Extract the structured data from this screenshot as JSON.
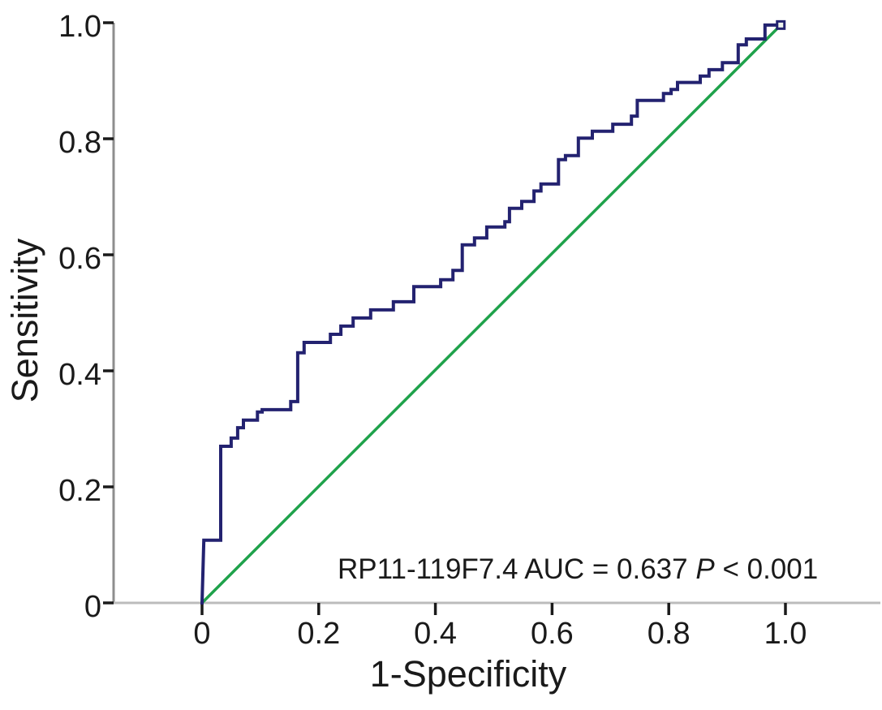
{
  "figure": {
    "background": "#ffffff"
  },
  "chart_data": {
    "type": "line",
    "subtype": "roc-step-curve",
    "title": "",
    "xlabel": "1-Specificity",
    "ylabel": "Sensitivity",
    "xlim": [
      0,
      1
    ],
    "ylim": [
      0,
      1
    ],
    "grid": false,
    "legend": "none",
    "x_ticks": [
      {
        "label": "0",
        "value": 0
      },
      {
        "label": "0.2",
        "value": 0.2
      },
      {
        "label": "0.4",
        "value": 0.4
      },
      {
        "label": "0.6",
        "value": 0.6
      },
      {
        "label": "0.8",
        "value": 0.8
      },
      {
        "label": "1.0",
        "value": 1.0
      }
    ],
    "y_ticks": [
      {
        "label": "1.0",
        "value": 1.0
      },
      {
        "label": "0.8",
        "value": 0.8
      },
      {
        "label": "0.6",
        "value": 0.6
      },
      {
        "label": "0.4",
        "value": 0.4
      },
      {
        "label": "0.2",
        "value": 0.2
      },
      {
        "label": "0",
        "value": 0
      }
    ],
    "series": [
      {
        "name": "RP11-119F7.4 ROC curve",
        "color": "#232270",
        "stroke_width": 4,
        "points": [
          [
            0.0,
            0.0
          ],
          [
            0.003,
            0.108
          ],
          [
            0.032,
            0.108
          ],
          [
            0.032,
            0.27
          ],
          [
            0.05,
            0.27
          ],
          [
            0.05,
            0.284
          ],
          [
            0.061,
            0.284
          ],
          [
            0.061,
            0.302
          ],
          [
            0.071,
            0.302
          ],
          [
            0.071,
            0.315
          ],
          [
            0.095,
            0.315
          ],
          [
            0.095,
            0.329
          ],
          [
            0.103,
            0.329
          ],
          [
            0.103,
            0.333
          ],
          [
            0.152,
            0.333
          ],
          [
            0.152,
            0.347
          ],
          [
            0.164,
            0.347
          ],
          [
            0.164,
            0.431
          ],
          [
            0.175,
            0.431
          ],
          [
            0.175,
            0.449
          ],
          [
            0.22,
            0.449
          ],
          [
            0.22,
            0.463
          ],
          [
            0.238,
            0.463
          ],
          [
            0.238,
            0.477
          ],
          [
            0.259,
            0.477
          ],
          [
            0.259,
            0.491
          ],
          [
            0.289,
            0.491
          ],
          [
            0.289,
            0.505
          ],
          [
            0.328,
            0.505
          ],
          [
            0.328,
            0.519
          ],
          [
            0.363,
            0.519
          ],
          [
            0.363,
            0.545
          ],
          [
            0.409,
            0.545
          ],
          [
            0.409,
            0.557
          ],
          [
            0.43,
            0.557
          ],
          [
            0.43,
            0.573
          ],
          [
            0.446,
            0.573
          ],
          [
            0.446,
            0.617
          ],
          [
            0.467,
            0.617
          ],
          [
            0.467,
            0.629
          ],
          [
            0.488,
            0.629
          ],
          [
            0.488,
            0.648
          ],
          [
            0.519,
            0.648
          ],
          [
            0.519,
            0.657
          ],
          [
            0.527,
            0.657
          ],
          [
            0.527,
            0.68
          ],
          [
            0.548,
            0.68
          ],
          [
            0.548,
            0.692
          ],
          [
            0.569,
            0.692
          ],
          [
            0.569,
            0.71
          ],
          [
            0.581,
            0.71
          ],
          [
            0.581,
            0.722
          ],
          [
            0.611,
            0.722
          ],
          [
            0.611,
            0.764
          ],
          [
            0.623,
            0.764
          ],
          [
            0.623,
            0.771
          ],
          [
            0.645,
            0.771
          ],
          [
            0.645,
            0.801
          ],
          [
            0.669,
            0.801
          ],
          [
            0.669,
            0.813
          ],
          [
            0.704,
            0.813
          ],
          [
            0.704,
            0.825
          ],
          [
            0.736,
            0.825
          ],
          [
            0.736,
            0.839
          ],
          [
            0.746,
            0.839
          ],
          [
            0.746,
            0.866
          ],
          [
            0.791,
            0.866
          ],
          [
            0.791,
            0.878
          ],
          [
            0.804,
            0.878
          ],
          [
            0.804,
            0.885
          ],
          [
            0.815,
            0.885
          ],
          [
            0.815,
            0.897
          ],
          [
            0.854,
            0.897
          ],
          [
            0.854,
            0.908
          ],
          [
            0.869,
            0.908
          ],
          [
            0.869,
            0.919
          ],
          [
            0.892,
            0.919
          ],
          [
            0.892,
            0.931
          ],
          [
            0.919,
            0.931
          ],
          [
            0.919,
            0.962
          ],
          [
            0.933,
            0.962
          ],
          [
            0.933,
            0.972
          ],
          [
            0.965,
            0.972
          ],
          [
            0.965,
            0.996
          ],
          [
            0.992,
            0.996
          ]
        ],
        "end_marker": {
          "shape": "square",
          "at": [
            0.992,
            0.996
          ],
          "color": "#232270"
        }
      },
      {
        "name": "reference diagonal",
        "color": "#1fa24b",
        "stroke_width": 3.5,
        "points": [
          [
            0.0,
            0.0
          ],
          [
            0.992,
            0.996
          ]
        ]
      }
    ],
    "auc": 0.637,
    "p_value": "< 0.001"
  },
  "axis_titles": {
    "y": "Sensitivity",
    "x": "1-Specificity"
  },
  "annotation": {
    "text": "RP11-119F7.4 AUC = 0.637",
    "p_label": "P",
    "p_value": "< 0.001"
  },
  "colors": {
    "curve": "#232270",
    "reference_line": "#1fa24b",
    "y_axis_line": "#8e8e8e",
    "x_axis_line": "#bcbcbc",
    "tick_marks": "#1a1a1a",
    "text": "#1a1a1a"
  }
}
